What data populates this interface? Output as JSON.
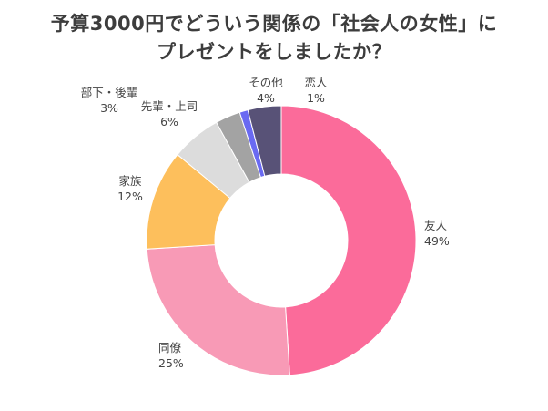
{
  "title_line1": "予算3000円でどういう関係の「社会人の女性」に",
  "title_line2": "プレゼントをしましたか？",
  "chart_data": {
    "type": "pie",
    "variant": "donut",
    "title": "予算3000円でどういう関係の「社会人の女性」にプレゼントをしましたか？",
    "categories": [
      "友人",
      "同僚",
      "家族",
      "先輩・上司",
      "部下・後輩",
      "恋人",
      "その他"
    ],
    "values": [
      49,
      25,
      12,
      6,
      3,
      1,
      4
    ],
    "value_labels": [
      "49%",
      "25%",
      "12%",
      "6%",
      "3%",
      "1%",
      "4%"
    ],
    "colors": [
      "#fb6b9a",
      "#f89ab6",
      "#fdbf5c",
      "#dcdcdc",
      "#a3a3a3",
      "#6a6af2",
      "#585277"
    ],
    "start": "12 o'clock",
    "direction": "clockwise",
    "legend": "none (direct labels)"
  }
}
